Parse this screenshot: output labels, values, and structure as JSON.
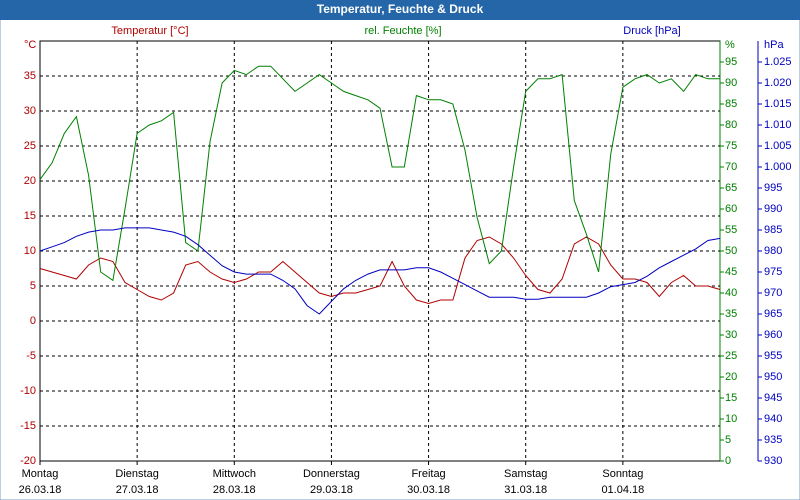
{
  "chart_data": {
    "type": "line",
    "title": "Temperatur, Feuchte & Druck",
    "y_unit": "°C",
    "y2_unit": "%",
    "y3_unit": "hPa",
    "x": [
      0,
      0.125,
      0.25,
      0.375,
      0.5,
      0.625,
      0.75,
      0.875,
      1,
      1.125,
      1.25,
      1.375,
      1.5,
      1.625,
      1.75,
      1.875,
      2,
      2.125,
      2.25,
      2.375,
      2.5,
      2.625,
      2.75,
      2.875,
      3,
      3.125,
      3.25,
      3.375,
      3.5,
      3.625,
      3.75,
      3.875,
      4,
      4.125,
      4.25,
      4.375,
      4.5,
      4.625,
      4.75,
      4.875,
      5,
      5.125,
      5.25,
      5.375,
      5.5,
      5.625,
      5.75,
      5.875,
      6,
      6.125,
      6.25,
      6.375,
      6.5,
      6.625,
      6.75,
      6.875,
      7
    ],
    "xlim": [
      0,
      7
    ],
    "xticks": [
      {
        "value": 0,
        "label": "Montag"
      },
      {
        "value": 1,
        "label": "Dienstag"
      },
      {
        "value": 2,
        "label": "Mittwoch"
      },
      {
        "value": 3,
        "label": "Donnerstag"
      },
      {
        "value": 4,
        "label": "Freitag"
      },
      {
        "value": 5,
        "label": "Samstag"
      },
      {
        "value": 6,
        "label": "Sonntag"
      }
    ],
    "xtick_dates": [
      "26.03.18",
      "27.03.18",
      "28.03.18",
      "29.03.18",
      "30.03.18",
      "31.03.18",
      "01.04.18"
    ],
    "ylim": [
      -20,
      40
    ],
    "yticks": [
      -20,
      -15,
      -10,
      -5,
      0,
      5,
      10,
      15,
      20,
      25,
      30,
      35
    ],
    "y2lim": [
      0,
      100
    ],
    "y2ticks": [
      0,
      5,
      10,
      15,
      20,
      25,
      30,
      35,
      40,
      45,
      50,
      55,
      60,
      65,
      70,
      75,
      80,
      85,
      90,
      95
    ],
    "y3lim": [
      930,
      1030
    ],
    "y3ticks": [
      930,
      935,
      940,
      945,
      950,
      955,
      960,
      965,
      970,
      975,
      980,
      985,
      990,
      995,
      {
        "value": 1000,
        "label": "1.000"
      },
      {
        "value": 1005,
        "label": "1.005"
      },
      {
        "value": 1010,
        "label": "1.010"
      },
      {
        "value": 1015,
        "label": "1.015"
      },
      {
        "value": 1020,
        "label": "1.020"
      },
      {
        "value": 1025,
        "label": "1.025"
      }
    ],
    "grid": true,
    "series": [
      {
        "name": "Temperatur [°C]",
        "color": "#b00000",
        "axis": "y",
        "values": [
          7.5,
          7,
          6.5,
          6,
          8,
          9,
          8.5,
          5.5,
          4.5,
          3.5,
          3,
          4,
          8,
          8.5,
          7,
          6,
          5.5,
          6,
          7,
          7,
          8.5,
          7,
          5.5,
          4,
          3.5,
          4,
          4,
          4.5,
          5,
          8.5,
          5,
          3,
          2.5,
          3,
          3,
          9,
          11.5,
          12,
          11,
          9,
          6.5,
          4.5,
          4,
          6,
          11,
          12,
          11,
          8,
          6,
          6,
          5.5,
          3.5,
          5.5,
          6.5,
          5,
          5,
          4.5
        ]
      },
      {
        "name": "rel. Feuchte [%]",
        "color": "#008000",
        "axis": "y2",
        "values": [
          67,
          71,
          78,
          82,
          68,
          45,
          43,
          60,
          78,
          80,
          81,
          83,
          52,
          50,
          76,
          90,
          93,
          92,
          94,
          94,
          91,
          88,
          90,
          92,
          90,
          88,
          87,
          86,
          84,
          70,
          70,
          87,
          86,
          86,
          85,
          74,
          58,
          47,
          50,
          70,
          88,
          91,
          91,
          92,
          62,
          54,
          45,
          73,
          89,
          91,
          92,
          90,
          91,
          88,
          92,
          91,
          91
        ]
      },
      {
        "name": "Druck [hPa]",
        "color": "#0000c0",
        "axis": "y3",
        "values": [
          980,
          981,
          982,
          983.5,
          984.5,
          985,
          985,
          985.5,
          985.5,
          985.5,
          985,
          984.5,
          983.5,
          981.5,
          979,
          976.5,
          975,
          974.5,
          974.5,
          974.5,
          973,
          971,
          967,
          965,
          968,
          971,
          973,
          974.5,
          975.5,
          975.5,
          975.5,
          976,
          976,
          975,
          973.5,
          972,
          970.5,
          969,
          969,
          969,
          968.5,
          968.5,
          969,
          969,
          969,
          969,
          970,
          971.5,
          972,
          972.5,
          974,
          976,
          977.5,
          979,
          980.5,
          982.5,
          983
        ]
      }
    ]
  }
}
